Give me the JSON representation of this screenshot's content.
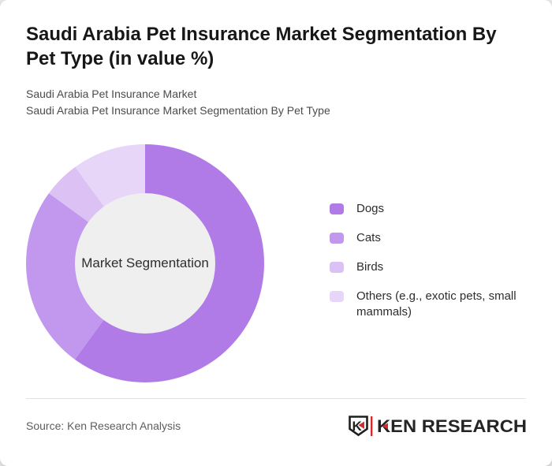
{
  "page": {
    "title": "Saudi Arabia Pet Insurance Market Segmentation By\nPet Type (in value %)",
    "subtitle_line1": "Saudi Arabia Pet Insurance Market",
    "subtitle_line2": "Saudi Arabia Pet Insurance Market Segmentation By Pet Type"
  },
  "chart_data": {
    "type": "pie",
    "variant": "donut",
    "title": "Saudi Arabia Pet Insurance Market Segmentation By Pet Type (in value %)",
    "center_label": "Market Segmentation",
    "categories": [
      "Dogs",
      "Cats",
      "Birds",
      "Others (e.g., exotic pets, small mammals)"
    ],
    "values": [
      60,
      25,
      5,
      10
    ],
    "unit": "percent",
    "colors": [
      "#b07be7",
      "#c297ee",
      "#dcc2f4",
      "#e7d6f8"
    ],
    "hole_color": "#efefef",
    "start_angle_deg": 0,
    "direction": "clockwise",
    "legend_position": "right",
    "data_labels_shown": false
  },
  "legend": {
    "items": [
      {
        "label": "Dogs",
        "color": "#b07be7"
      },
      {
        "label": "Cats",
        "color": "#c297ee"
      },
      {
        "label": "Birds",
        "color": "#dcc2f4"
      },
      {
        "label": "Others (e.g., exotic pets, small\nmammals)",
        "color": "#e7d6f8"
      }
    ]
  },
  "footer": {
    "source": "Source: Ken Research Analysis",
    "logo": {
      "monogram": "K",
      "brand": "KEN RESEARCH",
      "accent_red": "#d22c2c",
      "text_color": "#242424"
    }
  }
}
